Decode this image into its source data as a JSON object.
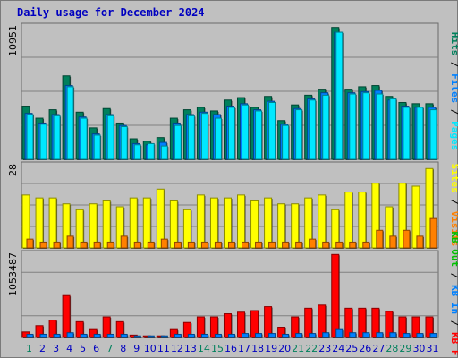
{
  "title": "Daily usage for December 2024",
  "colors": {
    "pages": "#00e8ff",
    "files": "#0080ff",
    "hits": "#00805c",
    "visits": "#ffff00",
    "sites": "#ff8000",
    "kb_f": "#ff0000",
    "kb_in": "#0080ff",
    "kb_out": "#00c000",
    "weekend_day": "#00805c",
    "weekday_day": "#0000c0"
  },
  "chart_data": [
    {
      "type": "bar",
      "panel": "top",
      "y_max_label": "10951",
      "ylim": [
        0,
        10951
      ],
      "right_legend": [
        "Pages",
        "Files",
        "Hits"
      ],
      "categories": [
        "1",
        "2",
        "3",
        "4",
        "5",
        "6",
        "7",
        "8",
        "9",
        "10",
        "11",
        "12",
        "13",
        "14",
        "15",
        "16",
        "17",
        "18",
        "19",
        "20",
        "21",
        "22",
        "23",
        "24",
        "25",
        "26",
        "27",
        "28",
        "29",
        "30",
        "31"
      ],
      "series": [
        {
          "name": "Hits",
          "values": [
            4400,
            3400,
            4100,
            6900,
            3900,
            2600,
            4200,
            3000,
            1700,
            1500,
            1800,
            3400,
            4100,
            4300,
            4000,
            4900,
            5100,
            4300,
            5200,
            3200,
            4500,
            5300,
            5800,
            10900,
            5800,
            6000,
            6100,
            5200,
            4700,
            4600,
            4600
          ]
        },
        {
          "name": "Files",
          "values": [
            3800,
            3000,
            3700,
            6100,
            3500,
            2100,
            3700,
            2800,
            1300,
            1200,
            1400,
            3000,
            3700,
            3900,
            3700,
            4400,
            4600,
            4100,
            4800,
            2900,
            4200,
            5000,
            5500,
            10500,
            5500,
            5600,
            5700,
            4900,
            4400,
            4300,
            4300
          ]
        },
        {
          "name": "Pages",
          "values": [
            3700,
            2900,
            3600,
            6000,
            3400,
            2000,
            3600,
            2700,
            1200,
            1300,
            1100,
            2800,
            3600,
            3800,
            3400,
            4300,
            4500,
            4000,
            4700,
            2800,
            4100,
            4900,
            5300,
            10500,
            5400,
            5500,
            5400,
            5000,
            4300,
            4300,
            4100
          ]
        }
      ]
    },
    {
      "type": "bar",
      "panel": "middle",
      "y_max_label": "28",
      "ylim": [
        0,
        28
      ],
      "right_legend": [
        "Visits",
        "Sites"
      ],
      "categories": [
        "1",
        "2",
        "3",
        "4",
        "5",
        "6",
        "7",
        "8",
        "9",
        "10",
        "11",
        "12",
        "13",
        "14",
        "15",
        "16",
        "17",
        "18",
        "19",
        "20",
        "21",
        "22",
        "23",
        "24",
        "25",
        "26",
        "27",
        "28",
        "29",
        "30",
        "31"
      ],
      "series": [
        {
          "name": "Visits",
          "values": [
            18,
            17,
            17,
            15,
            13,
            15,
            16,
            14,
            17,
            17,
            20,
            16,
            13,
            18,
            17,
            17,
            18,
            16,
            17,
            15,
            15,
            17,
            18,
            13,
            19,
            19,
            22,
            14,
            22,
            21,
            27
          ]
        },
        {
          "name": "Sites",
          "values": [
            3,
            2,
            2,
            4,
            2,
            2,
            2,
            4,
            2,
            2,
            3,
            2,
            2,
            2,
            2,
            2,
            2,
            2,
            2,
            2,
            2,
            3,
            2,
            2,
            2,
            2,
            6,
            4,
            6,
            4,
            10
          ]
        }
      ]
    },
    {
      "type": "bar",
      "panel": "bottom",
      "y_max_label": "1053487",
      "ylim": [
        0,
        1053487
      ],
      "right_legend": [
        "KB F",
        "KB In",
        "KB Out"
      ],
      "categories": [
        "1",
        "2",
        "3",
        "4",
        "5",
        "6",
        "7",
        "8",
        "9",
        "10",
        "11",
        "12",
        "13",
        "14",
        "15",
        "16",
        "17",
        "18",
        "19",
        "20",
        "21",
        "22",
        "23",
        "24",
        "25",
        "26",
        "27",
        "28",
        "29",
        "30",
        "31"
      ],
      "series": [
        {
          "name": "KB F",
          "values": [
            70000,
            150000,
            220000,
            530000,
            200000,
            100000,
            260000,
            200000,
            30000,
            20000,
            20000,
            100000,
            190000,
            260000,
            260000,
            300000,
            320000,
            340000,
            390000,
            130000,
            260000,
            370000,
            410000,
            1050000,
            370000,
            370000,
            370000,
            330000,
            260000,
            260000,
            260000
          ]
        },
        {
          "name": "KB In",
          "values": [
            40000,
            40000,
            40000,
            60000,
            40000,
            40000,
            40000,
            40000,
            20000,
            20000,
            20000,
            40000,
            40000,
            40000,
            40000,
            40000,
            50000,
            50000,
            50000,
            40000,
            50000,
            50000,
            60000,
            100000,
            60000,
            60000,
            60000,
            60000,
            50000,
            50000,
            50000
          ]
        }
      ]
    }
  ],
  "weekend_days": [
    1,
    7,
    14,
    15,
    21,
    22,
    28,
    29
  ]
}
